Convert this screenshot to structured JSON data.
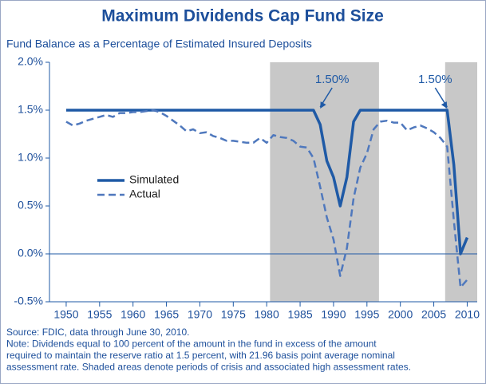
{
  "chart_data": {
    "type": "line",
    "title": "Maximum Dividends Cap Fund Size",
    "subtitle": "Fund Balance as a Percentage of Estimated Insured Deposits",
    "x": [
      1950,
      1951,
      1952,
      1953,
      1954,
      1955,
      1956,
      1957,
      1958,
      1959,
      1960,
      1961,
      1962,
      1963,
      1964,
      1965,
      1966,
      1967,
      1968,
      1969,
      1970,
      1971,
      1972,
      1973,
      1974,
      1975,
      1976,
      1977,
      1978,
      1979,
      1980,
      1981,
      1982,
      1983,
      1984,
      1985,
      1986,
      1987,
      1988,
      1989,
      1990,
      1991,
      1992,
      1993,
      1994,
      1995,
      1996,
      1997,
      1998,
      1999,
      2000,
      2001,
      2002,
      2003,
      2004,
      2005,
      2006,
      2007,
      2008,
      2009,
      2010
    ],
    "series": [
      {
        "name": "Simulated",
        "color": "#1f5aa6",
        "dash": false,
        "values": [
          1.5,
          1.5,
          1.5,
          1.5,
          1.5,
          1.5,
          1.5,
          1.5,
          1.5,
          1.5,
          1.5,
          1.5,
          1.5,
          1.5,
          1.5,
          1.5,
          1.5,
          1.5,
          1.5,
          1.5,
          1.5,
          1.5,
          1.5,
          1.5,
          1.5,
          1.5,
          1.5,
          1.5,
          1.5,
          1.5,
          1.5,
          1.5,
          1.5,
          1.5,
          1.5,
          1.5,
          1.5,
          1.5,
          1.35,
          0.97,
          0.8,
          0.5,
          0.8,
          1.38,
          1.5,
          1.5,
          1.5,
          1.5,
          1.5,
          1.5,
          1.5,
          1.5,
          1.5,
          1.5,
          1.5,
          1.5,
          1.5,
          1.5,
          0.93,
          0.0,
          0.17
        ]
      },
      {
        "name": "Actual",
        "color": "#4f78bd",
        "dash": true,
        "values": [
          1.38,
          1.34,
          1.36,
          1.39,
          1.41,
          1.43,
          1.45,
          1.43,
          1.47,
          1.47,
          1.48,
          1.48,
          1.49,
          1.5,
          1.48,
          1.44,
          1.39,
          1.34,
          1.28,
          1.3,
          1.26,
          1.27,
          1.23,
          1.21,
          1.18,
          1.18,
          1.17,
          1.16,
          1.16,
          1.21,
          1.16,
          1.24,
          1.22,
          1.21,
          1.18,
          1.12,
          1.11,
          1.0,
          0.7,
          0.38,
          0.15,
          -0.23,
          0.06,
          0.58,
          0.9,
          1.05,
          1.3,
          1.38,
          1.39,
          1.37,
          1.37,
          1.29,
          1.32,
          1.34,
          1.31,
          1.27,
          1.21,
          1.12,
          0.35,
          -0.35,
          -0.27
        ]
      }
    ],
    "xlim": [
      1947.5,
      2011.5
    ],
    "xticks": [
      1950,
      1955,
      1960,
      1965,
      1970,
      1975,
      1980,
      1985,
      1990,
      1995,
      2000,
      2005,
      2010
    ],
    "ylim": [
      -0.5,
      2.0
    ],
    "yticks": [
      {
        "value": -0.5,
        "label": "-0.5%"
      },
      {
        "value": 0.0,
        "label": "0.0%"
      },
      {
        "value": 0.5,
        "label": "0.5%"
      },
      {
        "value": 1.0,
        "label": "1.0%"
      },
      {
        "value": 1.5,
        "label": "1.5%"
      },
      {
        "value": 2.0,
        "label": "2.0%"
      }
    ],
    "shaded": [
      [
        1980.5,
        1996.8
      ],
      [
        2006.7,
        2011.5
      ]
    ],
    "annotations": [
      {
        "text": "1.50%",
        "x": 1988,
        "y": 1.5
      },
      {
        "text": "1.50%",
        "x": 2007,
        "y": 1.5
      }
    ],
    "footnotes": [
      "Source: FDIC, data through June 30, 2010.",
      "Note: Dividends equal to 100 percent of the amount in the fund in excess of the amount",
      "required to maintain the reserve ratio at 1.5 percent, with 21.96 basis point average nominal",
      "assessment rate. Shaded areas denote periods of crisis and associated high assessment rates."
    ]
  }
}
